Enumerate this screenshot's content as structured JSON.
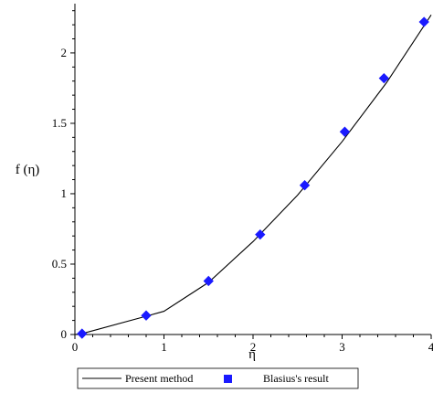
{
  "chart_data": {
    "type": "line",
    "title": "",
    "xlabel": "η",
    "ylabel": "f (η)",
    "xlim": [
      0,
      4
    ],
    "ylim": [
      0,
      2.35
    ],
    "x_ticks": [
      0,
      1,
      2,
      3,
      4
    ],
    "x_tick_labels": [
      "0",
      "1",
      "2",
      "3",
      "4"
    ],
    "y_ticks": [
      0,
      0.5,
      1,
      1.5,
      2
    ],
    "y_tick_labels": [
      "0",
      "0.5",
      "1",
      "1.5",
      "2"
    ],
    "grid": false,
    "legend_position": "bottom",
    "series": [
      {
        "name": "Present method",
        "style": "line",
        "color": "#000000",
        "x": [
          0,
          0.08,
          0.8,
          1.0,
          1.5,
          2.0,
          2.5,
          3.0,
          3.5,
          4.0
        ],
        "y": [
          0,
          0.006,
          0.13,
          0.165,
          0.37,
          0.66,
          0.99,
          1.37,
          1.79,
          2.27
        ]
      },
      {
        "name": "Blasius's result",
        "style": "marker",
        "color": "#1a1aff",
        "x": [
          0.08,
          0.8,
          1.5,
          2.08,
          2.58,
          3.03,
          3.47,
          3.92
        ],
        "y": [
          0.006,
          0.135,
          0.38,
          0.71,
          1.06,
          1.44,
          1.82,
          2.22
        ]
      }
    ]
  }
}
